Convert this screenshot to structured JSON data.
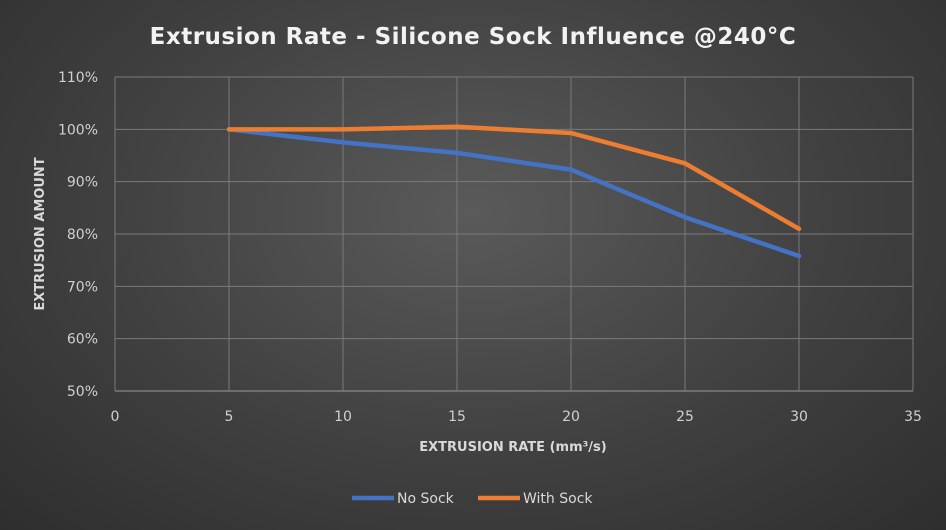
{
  "chart_data": {
    "type": "line",
    "title": "Extrusion Rate - Silicone Sock Influence @240°C",
    "xlabel": "EXTRUSION RATE (mm³/s)",
    "ylabel": "EXTRUSION AMOUNT",
    "xlim": [
      0,
      35
    ],
    "ylim": [
      50,
      110
    ],
    "x_ticks": [
      "0",
      "5",
      "10",
      "15",
      "20",
      "25",
      "30",
      "35"
    ],
    "y_ticks": [
      "50%",
      "60%",
      "70%",
      "80%",
      "90%",
      "100%",
      "110%"
    ],
    "x": [
      5,
      10,
      15,
      20,
      25,
      30
    ],
    "series": [
      {
        "name": "No Sock",
        "color": "#4472c4",
        "values": [
          100,
          97.5,
          95.5,
          92.3,
          83.2,
          75.8
        ]
      },
      {
        "name": "With Sock",
        "color": "#ed7d31",
        "values": [
          100,
          100,
          100.5,
          99.3,
          93.5,
          81
        ]
      }
    ],
    "grid": true,
    "legend": "bottom"
  }
}
